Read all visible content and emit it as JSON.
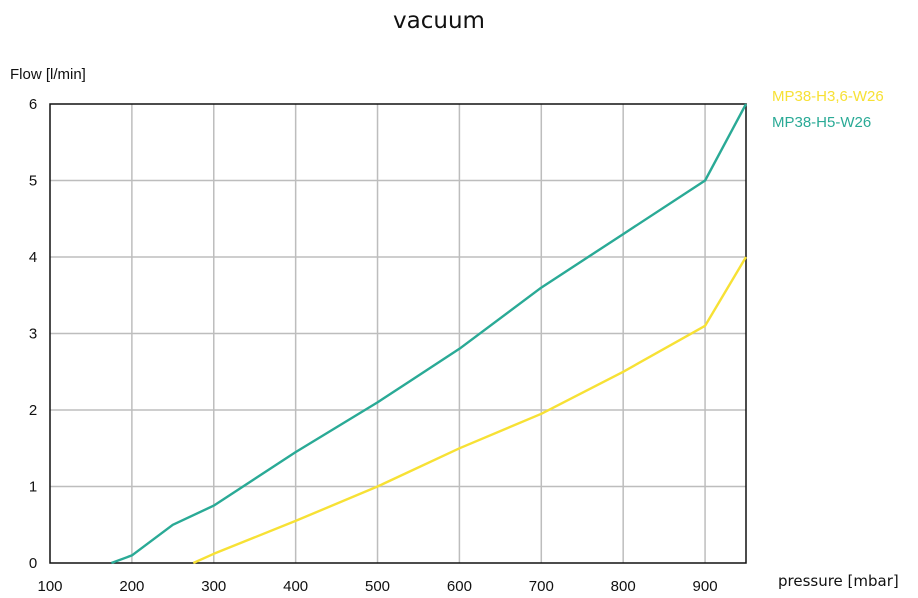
{
  "chart_data": {
    "type": "line",
    "title": "vacuum",
    "xlabel": "pressure [mbar]",
    "ylabel": "Flow [l/min]",
    "xlim": [
      100,
      950
    ],
    "ylim": [
      0,
      6
    ],
    "xticks": [
      100,
      200,
      300,
      400,
      500,
      600,
      700,
      800,
      900
    ],
    "yticks": [
      0,
      1,
      2,
      3,
      4,
      5,
      6
    ],
    "grid": true,
    "legend": "right, outside plot area",
    "series": [
      {
        "name": "MP38-H3,6-W26",
        "color": "#f7e135",
        "points": [
          [
            275,
            0
          ],
          [
            300,
            0.12
          ],
          [
            400,
            0.55
          ],
          [
            500,
            1.0
          ],
          [
            600,
            1.5
          ],
          [
            700,
            1.95
          ],
          [
            800,
            2.5
          ],
          [
            900,
            3.1
          ],
          [
            950,
            4.0
          ]
        ]
      },
      {
        "name": "MP38-H5-W26",
        "color": "#2aaa96",
        "points": [
          [
            175,
            0
          ],
          [
            200,
            0.1
          ],
          [
            250,
            0.5
          ],
          [
            300,
            0.75
          ],
          [
            400,
            1.45
          ],
          [
            500,
            2.1
          ],
          [
            600,
            2.8
          ],
          [
            700,
            3.6
          ],
          [
            800,
            4.3
          ],
          [
            900,
            5.0
          ],
          [
            950,
            6.0
          ]
        ]
      }
    ]
  }
}
